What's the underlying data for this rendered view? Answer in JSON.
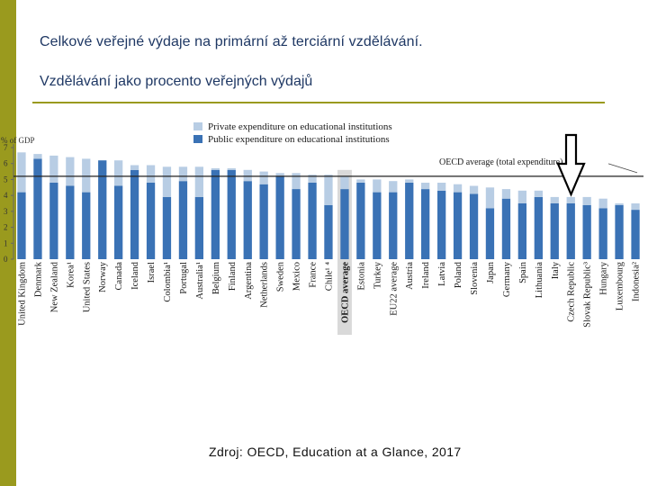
{
  "slide": {
    "title": "Celkové veřejné výdaje na primární až terciární vzdělávání.",
    "subtitle": "Vzdělávání jako procento veřejných výdajů",
    "source": "Zdroj: OECD, Education at a Glance, 2017"
  },
  "colors": {
    "accent": "#9a9a1e",
    "title_text": "#1f3864",
    "public_bar": "#3a72b5",
    "private_bar": "#b8cde4",
    "oecd_highlight": "#d9d9d9"
  },
  "chart_data": {
    "type": "bar",
    "stacked": true,
    "ylabel": "% of GDP",
    "ylim": [
      0,
      7
    ],
    "yticks": [
      0,
      1,
      2,
      3,
      4,
      5,
      6,
      7
    ],
    "grid": false,
    "legend_position": "top",
    "categories": [
      "United Kingdom",
      "Denmark",
      "New Zealand",
      "Korea¹",
      "United States",
      "Norway",
      "Canada",
      "Iceland",
      "Israel",
      "Colombia¹",
      "Portugal",
      "Australia¹",
      "Belgium",
      "Finland",
      "Argentina",
      "Netherlands",
      "Sweden",
      "Mexico",
      "France",
      "Chile¹ ⁴",
      "OECD average",
      "Estonia",
      "Turkey",
      "EU22 average",
      "Austria",
      "Ireland",
      "Latvia",
      "Poland",
      "Slovenia",
      "Japan",
      "Germany",
      "Spain",
      "Lithuania",
      "Italy",
      "Czech Republic",
      "Slovak Republic³",
      "Hungary",
      "Luxembourg",
      "Indonesia²"
    ],
    "highlight_category": "OECD average",
    "reference_line": {
      "label": "OECD average (total expenditure)",
      "value": 5.2
    },
    "series": [
      {
        "name": "Public expenditure on educational institutions",
        "color": "#3a72b5",
        "values": [
          4.2,
          6.3,
          4.8,
          4.6,
          4.2,
          6.2,
          4.6,
          5.6,
          4.8,
          3.9,
          4.9,
          3.9,
          5.6,
          5.6,
          4.9,
          4.7,
          5.2,
          4.4,
          4.8,
          3.4,
          4.4,
          4.8,
          4.2,
          4.2,
          4.8,
          4.4,
          4.3,
          4.2,
          4.1,
          3.2,
          3.8,
          3.5,
          3.9,
          3.5,
          3.5,
          3.4,
          3.2,
          3.4,
          3.1
        ]
      },
      {
        "name": "Private expenditure on educational institutions",
        "color": "#b8cde4",
        "values": [
          2.5,
          0.3,
          1.7,
          1.8,
          2.1,
          0.0,
          1.6,
          0.3,
          1.1,
          1.9,
          0.9,
          1.9,
          0.1,
          0.1,
          0.7,
          0.8,
          0.2,
          1.0,
          0.5,
          1.9,
          0.8,
          0.2,
          0.8,
          0.7,
          0.2,
          0.4,
          0.5,
          0.5,
          0.5,
          1.3,
          0.6,
          0.8,
          0.4,
          0.4,
          0.4,
          0.5,
          0.6,
          0.1,
          0.4
        ]
      }
    ]
  }
}
